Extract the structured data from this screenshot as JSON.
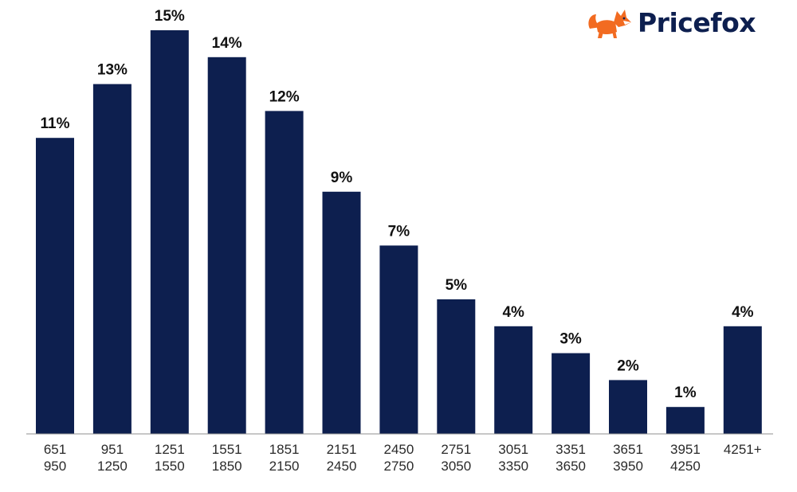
{
  "brand": {
    "name": "Pricefox",
    "logo_icon": "fox-icon",
    "logo_color": "#f26b21",
    "text_color": "#0d1f4f"
  },
  "colors": {
    "bar": "#0d1f4f",
    "axis": "#8f8f8f"
  },
  "chart_data": {
    "type": "bar",
    "title": "",
    "xlabel": "",
    "ylabel": "",
    "ylim": [
      0,
      15
    ],
    "grid": false,
    "categories": [
      [
        "651",
        "950"
      ],
      [
        "951",
        "1250"
      ],
      [
        "1251",
        "1550"
      ],
      [
        "1551",
        "1850"
      ],
      [
        "1851",
        "2150"
      ],
      [
        "2151",
        "2450"
      ],
      [
        "2450",
        "2750"
      ],
      [
        "2751",
        "3050"
      ],
      [
        "3051",
        "3350"
      ],
      [
        "3351",
        "3650"
      ],
      [
        "3651",
        "3950"
      ],
      [
        "3951",
        "4250"
      ],
      [
        "4251+"
      ]
    ],
    "values": [
      11,
      13,
      15,
      14,
      12,
      9,
      7,
      5,
      4,
      3,
      2,
      1,
      4
    ],
    "labels": [
      "11%",
      "13%",
      "15%",
      "14%",
      "12%",
      "9%",
      "7%",
      "5%",
      "4%",
      "3%",
      "2%",
      "1%",
      "4%"
    ]
  }
}
